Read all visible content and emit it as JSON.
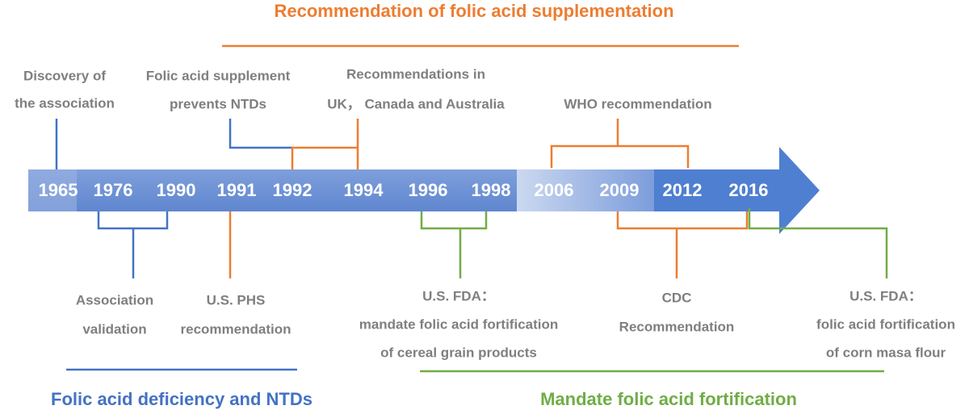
{
  "top_heading": "Recommendation of folic acid supplementation",
  "years": [
    "1965",
    "1976",
    "1990",
    "1991",
    "1992",
    "1994",
    "1996",
    "1998",
    "2006",
    "2009",
    "2012",
    "2016"
  ],
  "events_above": [
    {
      "lines": [
        "Discovery of",
        "the association"
      ]
    },
    {
      "lines": [
        "Folic acid supplement",
        "prevents NTDs"
      ]
    },
    {
      "lines": [
        "Recommendations in",
        "UK， Canada and Australia"
      ]
    },
    {
      "lines": [
        "WHO recommendation"
      ]
    }
  ],
  "events_below": [
    {
      "lines": [
        "Association",
        "validation"
      ]
    },
    {
      "lines": [
        "U.S. PHS",
        "recommendation"
      ]
    },
    {
      "lines": [
        "U.S. FDA：",
        "mandate folic acid fortification",
        "of cereal grain products"
      ]
    },
    {
      "lines": [
        "CDC",
        "Recommendation"
      ]
    },
    {
      "lines": [
        "U.S. FDA：",
        "folic acid fortification",
        "of corn masa flour"
      ]
    }
  ],
  "bottom_headings": [
    "Folic acid deficiency and NTDs",
    "Mandate folic acid fortification"
  ]
}
